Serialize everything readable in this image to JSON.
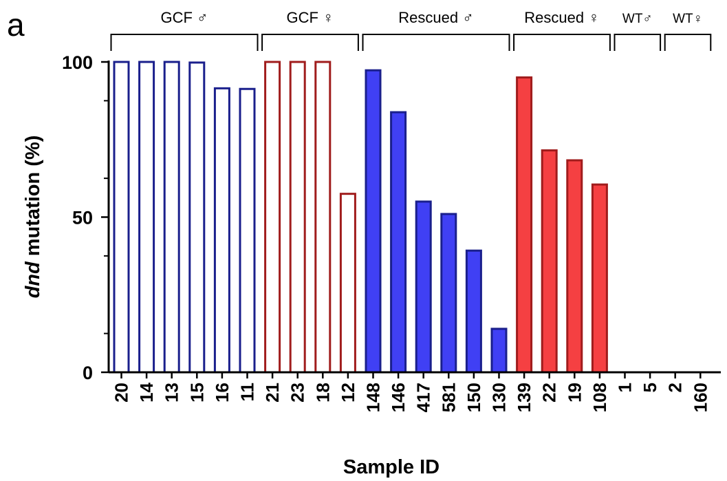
{
  "panel_label": "a",
  "chart_data": {
    "type": "bar",
    "xlabel": "Sample ID",
    "ylabel_italic": "dnd",
    "ylabel_rest": " mutation  (%)",
    "ylim": [
      0,
      100
    ],
    "yticks": [
      0,
      50,
      100
    ],
    "grid": false,
    "categories": [
      "20",
      "14",
      "13",
      "15",
      "16",
      "11",
      "21",
      "23",
      "18",
      "12",
      "148",
      "146",
      "417",
      "581",
      "150",
      "130",
      "139",
      "22",
      "19",
      "108",
      "1",
      "5",
      "2",
      "160"
    ],
    "values": [
      100,
      100,
      100,
      99.8,
      91.5,
      91.3,
      100,
      100,
      100,
      57.5,
      97.3,
      83.8,
      55,
      51,
      39.2,
      14,
      95,
      71.5,
      68.3,
      60.5,
      0,
      0,
      0,
      0
    ],
    "groups": [
      {
        "label": "GCF ♂",
        "start": 0,
        "end": 5,
        "fill": "#ffffff",
        "stroke": "#1a1f8c"
      },
      {
        "label": "GCF ♀",
        "start": 6,
        "end": 9,
        "fill": "#ffffff",
        "stroke": "#a01c1c"
      },
      {
        "label": "Rescued ♂",
        "start": 10,
        "end": 15,
        "fill": "#4040f4",
        "stroke": "#1a1f8c"
      },
      {
        "label": "Rescued ♀",
        "start": 16,
        "end": 19,
        "fill": "#f54042",
        "stroke": "#a01c1c"
      },
      {
        "label": "WT♂",
        "start": 20,
        "end": 21,
        "fill": "#4040f4",
        "stroke": "#1a1f8c"
      },
      {
        "label": "WT♀",
        "start": 22,
        "end": 23,
        "fill": "#f54042",
        "stroke": "#a01c1c"
      }
    ]
  }
}
